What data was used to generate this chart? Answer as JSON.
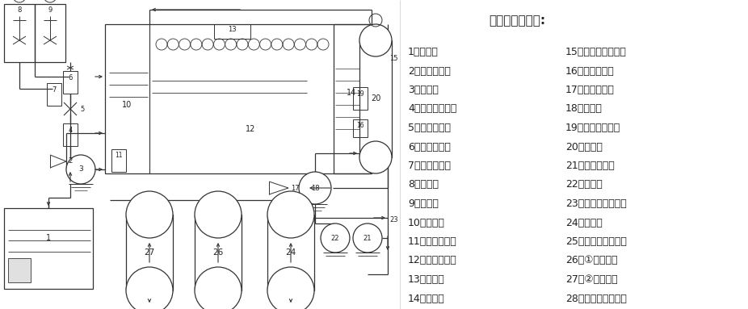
{
  "title": "工艺流程见下图:",
  "left_items": [
    "1：废水池",
    "2：加药射流器",
    "3：污水泵",
    "4：污水流电量计",
    "5：加药射流器",
    "6：加药流量计",
    "7：加药流量计",
    "8：药液箱",
    "9：搅拌机",
    "10：反应池",
    "11：溶气释放量",
    "12：气浮分离池",
    "13：刮渣机",
    "14：清水箱"
  ],
  "right_items": [
    "15：一级处理排放口",
    "16：气体流量计",
    "17：进气射流器",
    "18：溶气泵",
    "19：溶气水流量计",
    "20：溶气塔",
    "21：反冲流水泵",
    "22：过滤泵",
    "23：反冲洗水排放口",
    "24：过滤塔",
    "25：二级处理排放口",
    "26：①号吸附塔",
    "27：②号吸附塔",
    "28：三级处理排放口"
  ],
  "bg_color": "#ffffff",
  "text_color": "#222222",
  "diagram_color": "#333333"
}
